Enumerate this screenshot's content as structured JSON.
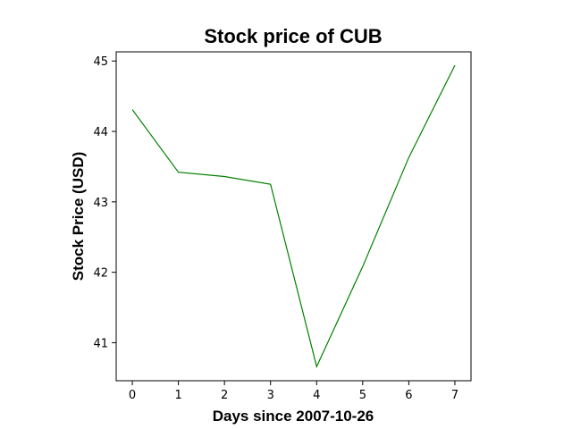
{
  "chart_data": {
    "type": "line",
    "title": "Stock price of CUB",
    "xlabel": "Days since 2007-10-26",
    "ylabel": "Stock Price (USD)",
    "x": [
      0,
      1,
      2,
      3,
      4,
      5,
      6,
      7
    ],
    "series": [
      {
        "values": [
          44.31,
          43.42,
          43.36,
          43.25,
          40.66,
          42.08,
          43.63,
          44.94
        ],
        "color": "#008000"
      }
    ],
    "xlim": [
      -0.35,
      7.35
    ],
    "ylim": [
      40.46,
      45.13
    ],
    "xticks": [
      0,
      1,
      2,
      3,
      4,
      5,
      6,
      7
    ],
    "yticks": [
      41,
      42,
      43,
      44,
      45
    ],
    "grid": false
  }
}
